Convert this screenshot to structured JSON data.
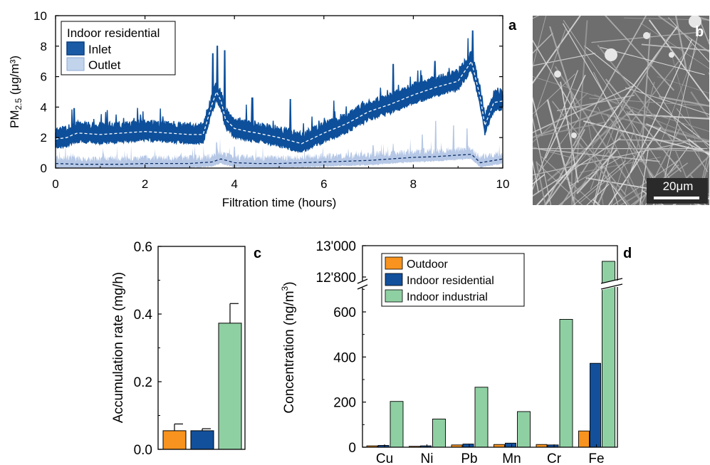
{
  "panels": {
    "a": {
      "letter": "a",
      "legend_title": "Indoor residential",
      "legend_items": [
        "Inlet",
        "Outlet"
      ],
      "ylabel_main": "PM",
      "ylabel_sub": "2.5",
      "ylabel_unit": " (μg/m³)",
      "xlabel": "Filtration time (hours)",
      "xticks": [
        "0",
        "2",
        "4",
        "6",
        "8",
        "10"
      ],
      "yticks": [
        "0",
        "2",
        "4",
        "6",
        "8",
        "10"
      ]
    },
    "b": {
      "letter": "b",
      "scalebar_label": "20μm"
    },
    "c": {
      "letter": "c",
      "ylabel": "Accumulation rate (mg/h)",
      "yticks": [
        "0.0",
        "0.2",
        "0.4",
        "0.6"
      ]
    },
    "d": {
      "letter": "d",
      "ylabel": "Concentration (ng/m",
      "ylabel_sup": "3",
      "ylabel_tail": ")",
      "yticks_lower": [
        "0",
        "200",
        "400",
        "600"
      ],
      "yticks_upper": [
        "12'800",
        "13'000"
      ],
      "legend_items": [
        "Outdoor",
        "Indoor residential",
        "Indoor industrial"
      ]
    }
  },
  "colors": {
    "inlet": "#0d4f9a",
    "inlet_light": "#b9cde6",
    "outlet": "#b6c8e6",
    "outdoor": "#f7931e",
    "indoor_residential": "#12509c",
    "indoor_industrial": "#8fd0a3",
    "axis": "#000000"
  },
  "chart_data": [
    {
      "panel": "a",
      "type": "line",
      "xlabel": "Filtration time (hours)",
      "ylabel": "PM2.5 (μg/m³)",
      "xlim": [
        0,
        10
      ],
      "ylim": [
        0,
        10
      ],
      "series": [
        {
          "name": "Inlet",
          "x": [
            0,
            0.25,
            0.4,
            0.5,
            1,
            1.5,
            2,
            2.5,
            3,
            3.3,
            3.5,
            3.6,
            3.7,
            3.8,
            4,
            4.3,
            4.5,
            5,
            5.5,
            6,
            6.5,
            7,
            7.5,
            8,
            8.5,
            9,
            9.3,
            9.5,
            9.6,
            9.8,
            10
          ],
          "y": [
            1.9,
            2.0,
            2.2,
            2.3,
            2.2,
            2.3,
            2.4,
            2.3,
            2.2,
            2.2,
            4.2,
            5.0,
            4.4,
            3.2,
            2.6,
            2.4,
            2.3,
            2.0,
            1.6,
            2.3,
            2.9,
            3.7,
            4.2,
            4.8,
            5.3,
            5.7,
            7.0,
            4.6,
            2.8,
            4.3,
            4.4
          ]
        },
        {
          "name": "Outlet",
          "x": [
            0,
            0.5,
            1,
            1.5,
            2,
            2.5,
            3,
            3.5,
            3.7,
            4,
            4.5,
            5,
            5.5,
            6,
            6.5,
            7,
            7.5,
            8,
            8.5,
            9,
            9.3,
            9.5,
            10
          ],
          "y": [
            0.3,
            0.25,
            0.25,
            0.25,
            0.3,
            0.3,
            0.3,
            0.4,
            0.6,
            0.35,
            0.3,
            0.3,
            0.35,
            0.4,
            0.45,
            0.5,
            0.6,
            0.7,
            0.75,
            0.85,
            0.9,
            0.35,
            0.6
          ]
        }
      ]
    },
    {
      "panel": "c",
      "type": "bar",
      "ylabel": "Accumulation rate (mg/h)",
      "ylim": [
        0,
        0.6
      ],
      "series": [
        {
          "name": "Outdoor",
          "value": 0.055,
          "error": 0.02
        },
        {
          "name": "Indoor residential",
          "value": 0.055,
          "error": 0.006
        },
        {
          "name": "Indoor industrial",
          "value": 0.373,
          "error": 0.058
        }
      ]
    },
    {
      "panel": "d",
      "type": "bar",
      "ylabel": "Concentration (ng/m3)",
      "ylim_lower": [
        0,
        720
      ],
      "ylim_upper": [
        12750,
        13000
      ],
      "categories": [
        "Cu",
        "Ni",
        "Pb",
        "Mn",
        "Cr",
        "Fe"
      ],
      "series": [
        {
          "name": "Outdoor",
          "values": [
            6,
            4,
            10,
            12,
            12,
            72
          ]
        },
        {
          "name": "Indoor residential",
          "values": [
            8,
            6,
            14,
            18,
            10,
            372
          ]
        },
        {
          "name": "Indoor industrial",
          "values": [
            203,
            125,
            266,
            158,
            567,
            12900
          ]
        }
      ]
    }
  ]
}
